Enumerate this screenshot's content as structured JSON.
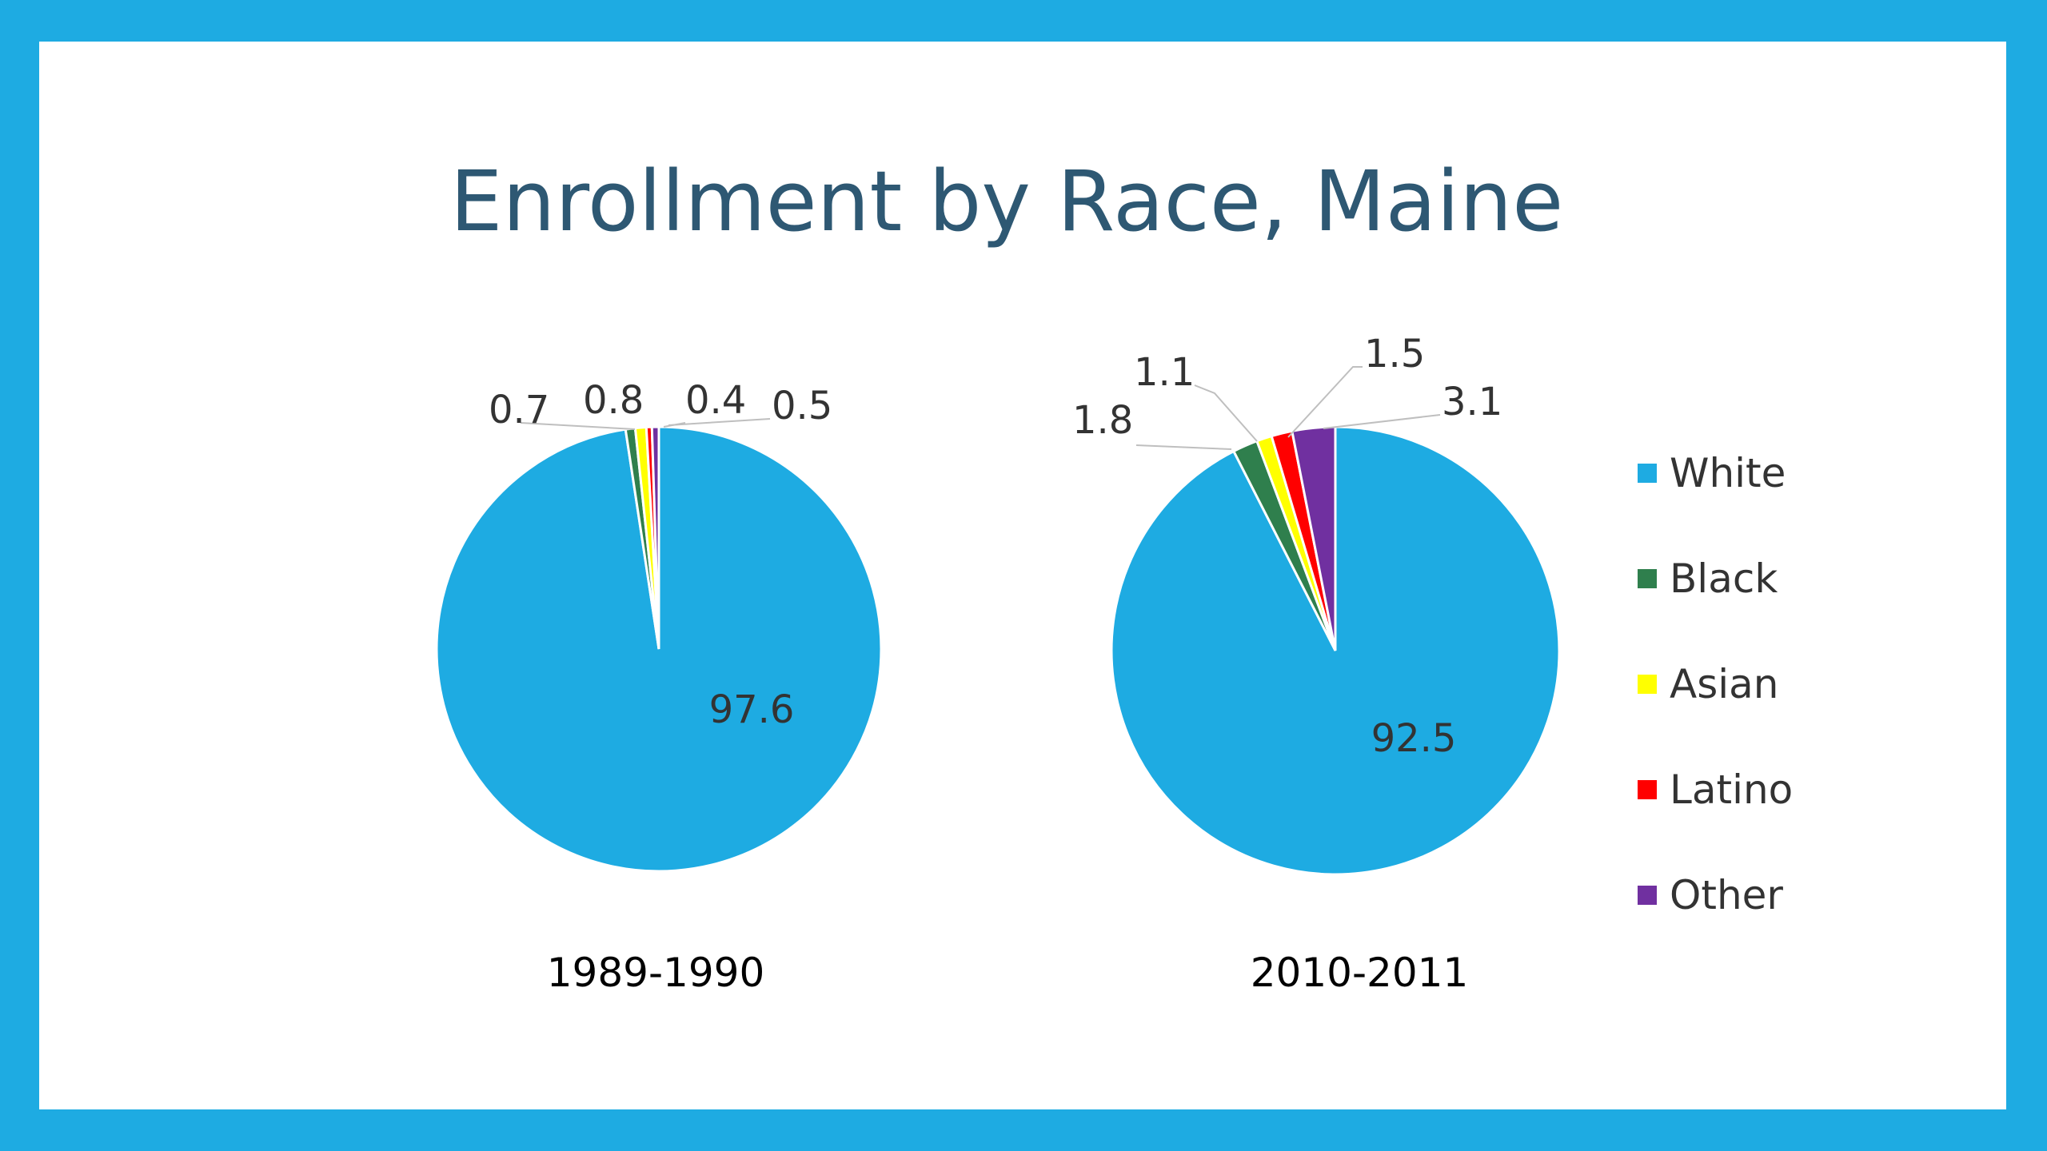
{
  "slide": {
    "title": "Enrollment by Race, Maine",
    "background": "#FFFFFF",
    "frame_color": "#1EABE2",
    "title_color": "#2E5873"
  },
  "legend": {
    "position": "right",
    "items": [
      {
        "label": "White",
        "color": "#1EABE2"
      },
      {
        "label": "Black",
        "color": "#2F7F4D"
      },
      {
        "label": "Asian",
        "color": "#FFFF00"
      },
      {
        "label": "Latino",
        "color": "#FF0000"
      },
      {
        "label": "Other",
        "color": "#7030A0"
      }
    ]
  },
  "chart_data": [
    {
      "type": "pie",
      "title": "1989-1990",
      "categories": [
        "White",
        "Black",
        "Asian",
        "Latino",
        "Other"
      ],
      "values": [
        97.6,
        0.7,
        0.8,
        0.4,
        0.5
      ],
      "value_labels": [
        "97.6",
        "0.7",
        "0.8",
        "0.4",
        "0.5"
      ]
    },
    {
      "type": "pie",
      "title": "2010-2011",
      "categories": [
        "White",
        "Black",
        "Asian",
        "Latino",
        "Other"
      ],
      "values": [
        92.5,
        1.8,
        1.1,
        1.5,
        3.1
      ],
      "value_labels": [
        "92.5",
        "1.8",
        "1.1",
        "1.5",
        "3.1"
      ]
    }
  ]
}
